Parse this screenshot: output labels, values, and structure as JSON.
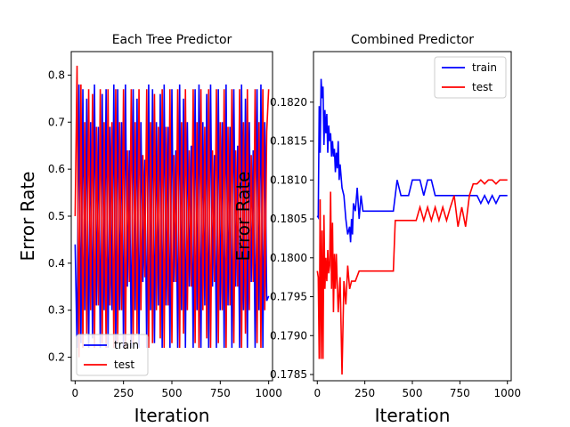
{
  "chart_data": [
    {
      "type": "line",
      "title": "Each Tree Predictor",
      "xlabel": "Iteration",
      "ylabel": "Error Rate",
      "xlim": [
        -20,
        1020
      ],
      "ylim": [
        0.15,
        0.85
      ],
      "xticks": [
        0,
        250,
        500,
        750,
        1000
      ],
      "yticks": [
        0.2,
        0.3,
        0.4,
        0.5,
        0.6,
        0.7,
        0.8
      ],
      "ytick_labels": [
        "0.2",
        "0.3",
        "0.4",
        "0.5",
        "0.6",
        "0.7",
        "0.8"
      ],
      "legend_position": "lower-left",
      "grid": false,
      "series": [
        {
          "name": "train",
          "color": "#0000ff",
          "x": [
            0,
            10,
            20,
            30,
            40,
            50,
            60,
            70,
            80,
            90,
            100,
            110,
            120,
            130,
            140,
            150,
            160,
            170,
            180,
            190,
            200,
            210,
            220,
            230,
            240,
            250,
            260,
            270,
            280,
            290,
            300,
            310,
            320,
            330,
            340,
            350,
            360,
            370,
            380,
            390,
            400,
            410,
            420,
            430,
            440,
            450,
            460,
            470,
            480,
            490,
            500,
            510,
            520,
            530,
            540,
            550,
            560,
            570,
            580,
            590,
            600,
            610,
            620,
            630,
            640,
            650,
            660,
            670,
            680,
            690,
            700,
            710,
            720,
            730,
            740,
            750,
            760,
            770,
            780,
            790,
            800,
            810,
            820,
            830,
            840,
            850,
            860,
            870,
            880,
            890,
            900,
            910,
            920,
            930,
            940,
            950,
            960,
            970,
            980,
            990,
            1000
          ],
          "y": [
            0.44,
            0.22,
            0.78,
            0.23,
            0.77,
            0.3,
            0.75,
            0.22,
            0.7,
            0.24,
            0.78,
            0.31,
            0.69,
            0.22,
            0.76,
            0.3,
            0.77,
            0.22,
            0.69,
            0.3,
            0.78,
            0.22,
            0.77,
            0.3,
            0.7,
            0.22,
            0.78,
            0.35,
            0.64,
            0.22,
            0.77,
            0.3,
            0.75,
            0.22,
            0.7,
            0.36,
            0.62,
            0.22,
            0.78,
            0.3,
            0.77,
            0.23,
            0.7,
            0.31,
            0.76,
            0.22,
            0.78,
            0.31,
            0.69,
            0.22,
            0.77,
            0.36,
            0.64,
            0.22,
            0.78,
            0.3,
            0.75,
            0.22,
            0.7,
            0.35,
            0.65,
            0.22,
            0.77,
            0.3,
            0.78,
            0.22,
            0.7,
            0.31,
            0.76,
            0.22,
            0.78,
            0.35,
            0.63,
            0.22,
            0.77,
            0.3,
            0.7,
            0.22,
            0.78,
            0.31,
            0.69,
            0.22,
            0.77,
            0.35,
            0.65,
            0.22,
            0.78,
            0.3,
            0.75,
            0.22,
            0.7,
            0.36,
            0.64,
            0.22,
            0.77,
            0.3,
            0.78,
            0.22,
            0.7,
            0.32,
            0.33
          ]
        },
        {
          "name": "test",
          "color": "#ff0000",
          "x": [
            0,
            10,
            20,
            30,
            40,
            50,
            60,
            70,
            80,
            90,
            100,
            110,
            120,
            130,
            140,
            150,
            160,
            170,
            180,
            190,
            200,
            210,
            220,
            230,
            240,
            250,
            260,
            270,
            280,
            290,
            300,
            310,
            320,
            330,
            340,
            350,
            360,
            370,
            380,
            390,
            400,
            410,
            420,
            430,
            440,
            450,
            460,
            470,
            480,
            490,
            500,
            510,
            520,
            530,
            540,
            550,
            560,
            570,
            580,
            590,
            600,
            610,
            620,
            630,
            640,
            650,
            660,
            670,
            680,
            690,
            700,
            710,
            720,
            730,
            740,
            750,
            760,
            770,
            780,
            790,
            800,
            810,
            820,
            830,
            840,
            850,
            860,
            870,
            880,
            890,
            900,
            910,
            920,
            930,
            940,
            950,
            960,
            970,
            980,
            990,
            1000
          ],
          "y": [
            0.5,
            0.82,
            0.2,
            0.78,
            0.22,
            0.7,
            0.25,
            0.77,
            0.3,
            0.76,
            0.22,
            0.69,
            0.31,
            0.77,
            0.23,
            0.7,
            0.22,
            0.77,
            0.31,
            0.7,
            0.22,
            0.77,
            0.23,
            0.7,
            0.3,
            0.77,
            0.22,
            0.64,
            0.36,
            0.77,
            0.23,
            0.7,
            0.25,
            0.77,
            0.3,
            0.63,
            0.37,
            0.77,
            0.22,
            0.7,
            0.23,
            0.76,
            0.3,
            0.69,
            0.24,
            0.77,
            0.22,
            0.69,
            0.31,
            0.77,
            0.23,
            0.63,
            0.36,
            0.77,
            0.22,
            0.7,
            0.25,
            0.77,
            0.3,
            0.64,
            0.35,
            0.77,
            0.23,
            0.7,
            0.22,
            0.77,
            0.3,
            0.69,
            0.24,
            0.77,
            0.22,
            0.64,
            0.36,
            0.77,
            0.23,
            0.7,
            0.3,
            0.77,
            0.22,
            0.69,
            0.31,
            0.77,
            0.23,
            0.64,
            0.35,
            0.77,
            0.22,
            0.7,
            0.25,
            0.77,
            0.3,
            0.63,
            0.36,
            0.77,
            0.23,
            0.7,
            0.22,
            0.77,
            0.3,
            0.68,
            0.77
          ]
        }
      ]
    },
    {
      "type": "line",
      "title": "Combined Predictor",
      "xlabel": "Iteration",
      "ylabel": "Error Rate",
      "xlim": [
        -20,
        1020
      ],
      "ylim": [
        0.17842,
        0.18265
      ],
      "xticks": [
        0,
        250,
        500,
        750,
        1000
      ],
      "yticks": [
        0.1785,
        0.179,
        0.1795,
        0.18,
        0.1805,
        0.181,
        0.1815,
        0.182
      ],
      "ytick_labels": [
        "0.1785",
        "0.1790",
        "0.1795",
        "0.1800",
        "0.1805",
        "0.1810",
        "0.1815",
        "0.1820"
      ],
      "legend_position": "upper-right",
      "grid": false,
      "series": [
        {
          "name": "train",
          "color": "#0000ff",
          "x": [
            0,
            5,
            10,
            15,
            20,
            25,
            30,
            35,
            40,
            45,
            50,
            55,
            60,
            65,
            70,
            75,
            80,
            85,
            90,
            95,
            100,
            105,
            110,
            115,
            120,
            130,
            140,
            150,
            160,
            170,
            175,
            180,
            185,
            190,
            200,
            210,
            220,
            230,
            240,
            260,
            280,
            300,
            320,
            340,
            360,
            380,
            400,
            420,
            440,
            460,
            480,
            500,
            520,
            540,
            560,
            580,
            600,
            620,
            640,
            660,
            680,
            700,
            720,
            740,
            760,
            780,
            800,
            820,
            840,
            860,
            880,
            900,
            920,
            940,
            960,
            980,
            1000
          ],
          "y": [
            0.18054,
            0.18052,
            0.18195,
            0.18135,
            0.1823,
            0.18205,
            0.1822,
            0.18145,
            0.1819,
            0.1816,
            0.18185,
            0.18135,
            0.1817,
            0.1815,
            0.1816,
            0.1813,
            0.1815,
            0.1813,
            0.1814,
            0.1811,
            0.18135,
            0.18115,
            0.1815,
            0.181,
            0.1812,
            0.1809,
            0.1808,
            0.1805,
            0.1803,
            0.1804,
            0.1802,
            0.1805,
            0.1803,
            0.1807,
            0.1806,
            0.1809,
            0.1805,
            0.1808,
            0.1806,
            0.1806,
            0.1806,
            0.1806,
            0.1806,
            0.1806,
            0.1806,
            0.1806,
            0.1806,
            0.181,
            0.1808,
            0.1808,
            0.1808,
            0.181,
            0.181,
            0.181,
            0.1808,
            0.181,
            0.181,
            0.1808,
            0.1808,
            0.1808,
            0.1808,
            0.1808,
            0.1808,
            0.1808,
            0.1808,
            0.1808,
            0.1808,
            0.1808,
            0.1808,
            0.1807,
            0.1808,
            0.1807,
            0.1808,
            0.1807,
            0.1808,
            0.1808,
            0.1808
          ]
        },
        {
          "name": "test",
          "color": "#ff0000",
          "x": [
            0,
            5,
            10,
            15,
            20,
            25,
            30,
            35,
            40,
            45,
            50,
            55,
            60,
            65,
            70,
            75,
            80,
            85,
            90,
            95,
            100,
            110,
            120,
            130,
            140,
            150,
            160,
            170,
            180,
            200,
            220,
            240,
            260,
            280,
            300,
            320,
            340,
            360,
            380,
            400,
            410,
            420,
            440,
            460,
            480,
            500,
            520,
            540,
            560,
            580,
            600,
            620,
            640,
            660,
            680,
            700,
            720,
            740,
            760,
            780,
            800,
            820,
            840,
            860,
            880,
            900,
            920,
            940,
            960,
            980,
            1000
          ],
          "y": [
            0.17983,
            0.17975,
            0.1787,
            0.18075,
            0.1787,
            0.18035,
            0.1787,
            0.18055,
            0.1796,
            0.18,
            0.1797,
            0.1801,
            0.1798,
            0.1799,
            0.18085,
            0.1796,
            0.18045,
            0.1793,
            0.18005,
            0.1796,
            0.18005,
            0.1793,
            0.17975,
            0.1785,
            0.1797,
            0.1794,
            0.1799,
            0.1796,
            0.1797,
            0.1797,
            0.17983,
            0.17983,
            0.17983,
            0.17983,
            0.17983,
            0.17983,
            0.17983,
            0.17983,
            0.17983,
            0.17983,
            0.18048,
            0.18048,
            0.18048,
            0.18048,
            0.18048,
            0.18048,
            0.18048,
            0.18065,
            0.18048,
            0.18065,
            0.18048,
            0.18065,
            0.18048,
            0.18065,
            0.18048,
            0.18065,
            0.1808,
            0.1804,
            0.18065,
            0.1804,
            0.1808,
            0.18095,
            0.18095,
            0.181,
            0.18095,
            0.181,
            0.181,
            0.18095,
            0.181,
            0.181,
            0.181
          ]
        }
      ]
    }
  ]
}
